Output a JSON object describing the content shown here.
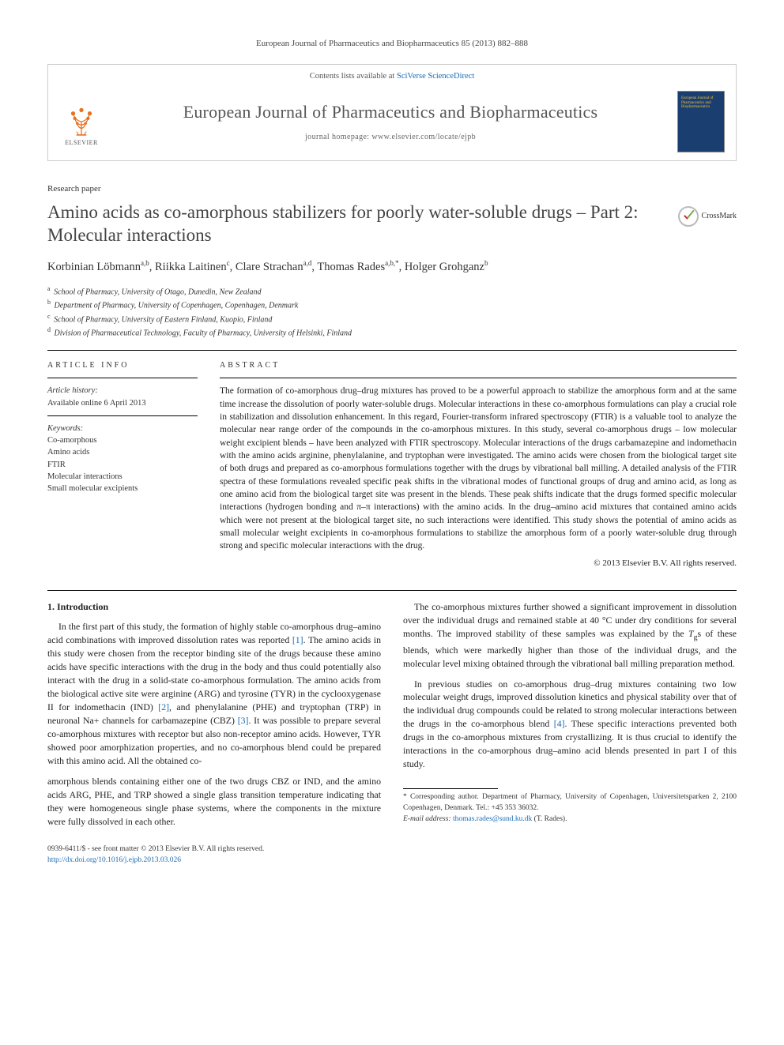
{
  "citation": "European Journal of Pharmaceutics and Biopharmaceutics 85 (2013) 882–888",
  "header": {
    "contents_text": "Contents lists available at ",
    "contents_link": "SciVerse ScienceDirect",
    "journal_name": "European Journal of Pharmaceutics and Biopharmaceutics",
    "homepage_label": "journal homepage: ",
    "homepage_url": "www.elsevier.com/locate/ejpb",
    "publisher": "ELSEVIER",
    "cover_text": "European Journal of Pharmaceutics and Biopharmaceutics"
  },
  "article_type": "Research paper",
  "title": "Amino acids as co-amorphous stabilizers for poorly water-soluble drugs – Part 2: Molecular interactions",
  "crossmark_label": "CrossMark",
  "authors_html": "Korbinian Löbmann<sup>a,b</sup>, Riikka Laitinen<sup>c</sup>, Clare Strachan<sup>a,d</sup>, Thomas Rades<sup>a,b,*</sup>, Holger Grohganz<sup>b</sup>",
  "affiliations": [
    {
      "sup": "a",
      "text": "School of Pharmacy, University of Otago, Dunedin, New Zealand"
    },
    {
      "sup": "b",
      "text": "Department of Pharmacy, University of Copenhagen, Copenhagen, Denmark"
    },
    {
      "sup": "c",
      "text": "School of Pharmacy, University of Eastern Finland, Kuopio, Finland"
    },
    {
      "sup": "d",
      "text": "Division of Pharmaceutical Technology, Faculty of Pharmacy, University of Helsinki, Finland"
    }
  ],
  "info": {
    "heading": "ARTICLE INFO",
    "history_label": "Article history:",
    "history_text": "Available online 6 April 2013",
    "keywords_label": "Keywords:",
    "keywords": [
      "Co-amorphous",
      "Amino acids",
      "FTIR",
      "Molecular interactions",
      "Small molecular excipients"
    ]
  },
  "abstract": {
    "heading": "ABSTRACT",
    "text": "The formation of co-amorphous drug–drug mixtures has proved to be a powerful approach to stabilize the amorphous form and at the same time increase the dissolution of poorly water-soluble drugs. Molecular interactions in these co-amorphous formulations can play a crucial role in stabilization and dissolution enhancement. In this regard, Fourier-transform infrared spectroscopy (FTIR) is a valuable tool to analyze the molecular near range order of the compounds in the co-amorphous mixtures. In this study, several co-amorphous drugs – low molecular weight excipient blends – have been analyzed with FTIR spectroscopy. Molecular interactions of the drugs carbamazepine and indomethacin with the amino acids arginine, phenylalanine, and tryptophan were investigated. The amino acids were chosen from the biological target site of both drugs and prepared as co-amorphous formulations together with the drugs by vibrational ball milling. A detailed analysis of the FTIR spectra of these formulations revealed specific peak shifts in the vibrational modes of functional groups of drug and amino acid, as long as one amino acid from the biological target site was present in the blends. These peak shifts indicate that the drugs formed specific molecular interactions (hydrogen bonding and π–π interactions) with the amino acids. In the drug–amino acid mixtures that contained amino acids which were not present at the biological target site, no such interactions were identified. This study shows the potential of amino acids as small molecular weight excipients in co-amorphous formulations to stabilize the amorphous form of a poorly water-soluble drug through strong and specific molecular interactions with the drug.",
    "copyright": "© 2013 Elsevier B.V. All rights reserved."
  },
  "body": {
    "section1_heading": "1. Introduction",
    "p1": "In the first part of this study, the formation of highly stable co-amorphous drug–amino acid combinations with improved dissolution rates was reported [1]. The amino acids in this study were chosen from the receptor binding site of the drugs because these amino acids have specific interactions with the drug in the body and thus could potentially also interact with the drug in a solid-state co-amorphous formulation. The amino acids from the biological active site were arginine (ARG) and tyrosine (TYR) in the cyclooxygenase II for indomethacin (IND) [2], and phenylalanine (PHE) and tryptophan (TRP) in neuronal Na+ channels for carbamazepine (CBZ) [3]. It was possible to prepare several co-amorphous mixtures with receptor but also non-receptor amino acids. However, TYR showed poor amorphization properties, and no co-amorphous blend could be prepared with this amino acid. All the obtained co-",
    "p2": "amorphous blends containing either one of the two drugs CBZ or IND, and the amino acids ARG, PHE, and TRP showed a single glass transition temperature indicating that they were homogeneous single phase systems, where the components in the mixture were fully dissolved in each other.",
    "p3": "The co-amorphous mixtures further showed a significant improvement in dissolution over the individual drugs and remained stable at 40 °C under dry conditions for several months. The improved stability of these samples was explained by the Tgs of these blends, which were markedly higher than those of the individual drugs, and the molecular level mixing obtained through the vibrational ball milling preparation method.",
    "p4": "In previous studies on co-amorphous drug–drug mixtures containing two low molecular weight drugs, improved dissolution kinetics and physical stability over that of the individual drug compounds could be related to strong molecular interactions between the drugs in the co-amorphous blend [4]. These specific interactions prevented both drugs in the co-amorphous mixtures from crystallizing. It is thus crucial to identify the interactions in the co-amorphous drug–amino acid blends presented in part I of this study."
  },
  "footer": {
    "corresponding": "* Corresponding author. Department of Pharmacy, University of Copenhagen, Universitetsparken 2, 2100 Copenhagen, Denmark. Tel.: +45 353 36032.",
    "email_label": "E-mail address: ",
    "email": "thomas.rades@sund.ku.dk",
    "email_suffix": " (T. Rades)."
  },
  "bottom": {
    "issn_line": "0939-6411/$ - see front matter © 2013 Elsevier B.V. All rights reserved.",
    "doi_url": "http://dx.doi.org/10.1016/j.ejpb.2013.03.026"
  },
  "colors": {
    "link": "#1a6bb3",
    "elsevier_orange": "#e9701e",
    "cover_bg": "#1a3e6f",
    "cover_text": "#f0c040"
  }
}
